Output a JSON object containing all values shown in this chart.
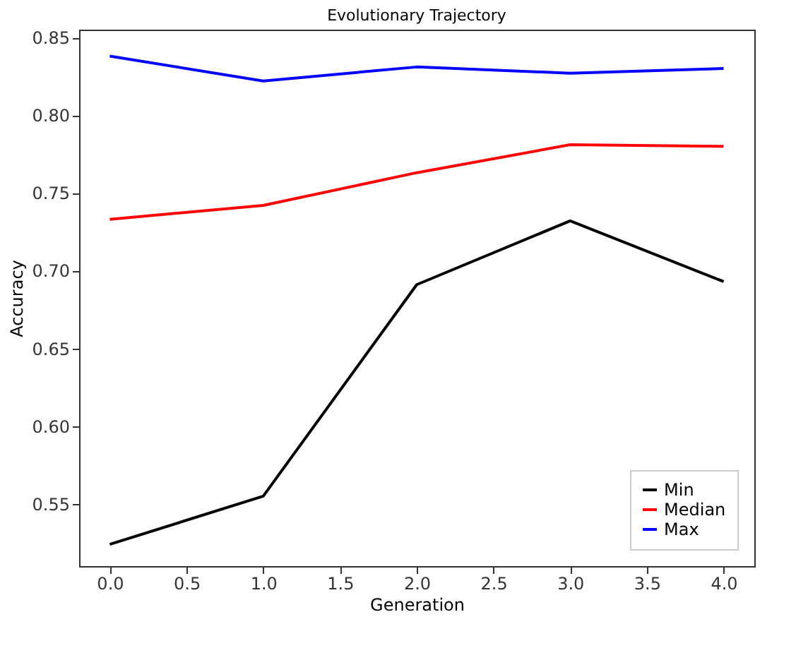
{
  "chart_data": {
    "type": "line",
    "title": "Evolutionary Trajectory",
    "xlabel": "Generation",
    "ylabel": "Accuracy",
    "x": [
      0,
      1,
      2,
      3,
      4
    ],
    "series": [
      {
        "name": "Min",
        "color": "#000000",
        "values": [
          0.524,
          0.555,
          0.691,
          0.732,
          0.693
        ]
      },
      {
        "name": "Median",
        "color": "#ff0000",
        "values": [
          0.733,
          0.742,
          0.763,
          0.781,
          0.78
        ]
      },
      {
        "name": "Max",
        "color": "#0000ff",
        "values": [
          0.838,
          0.822,
          0.831,
          0.827,
          0.83
        ]
      }
    ],
    "xlim": [
      -0.2,
      4.2
    ],
    "xticks": [
      {
        "value": 0,
        "label": "0.0"
      },
      {
        "value": 0.5,
        "label": "0.5"
      },
      {
        "value": 1,
        "label": "1.0"
      },
      {
        "value": 1.5,
        "label": "1.5"
      },
      {
        "value": 2,
        "label": "2.0"
      },
      {
        "value": 2.5,
        "label": "2.5"
      },
      {
        "value": 3,
        "label": "3.0"
      },
      {
        "value": 3.5,
        "label": "3.5"
      },
      {
        "value": 4,
        "label": "4.0"
      }
    ],
    "ylim": [
      0.51,
      0.855
    ],
    "yticks": [
      0.55,
      {
        "value": 0.6,
        "label": "0.60"
      },
      0.65,
      {
        "value": 0.7,
        "label": "0.70"
      },
      0.75,
      {
        "value": 0.8,
        "label": "0.80"
      },
      0.85
    ],
    "grid": false,
    "legend": "bottom right",
    "marker": "none",
    "line_style": "solid"
  }
}
